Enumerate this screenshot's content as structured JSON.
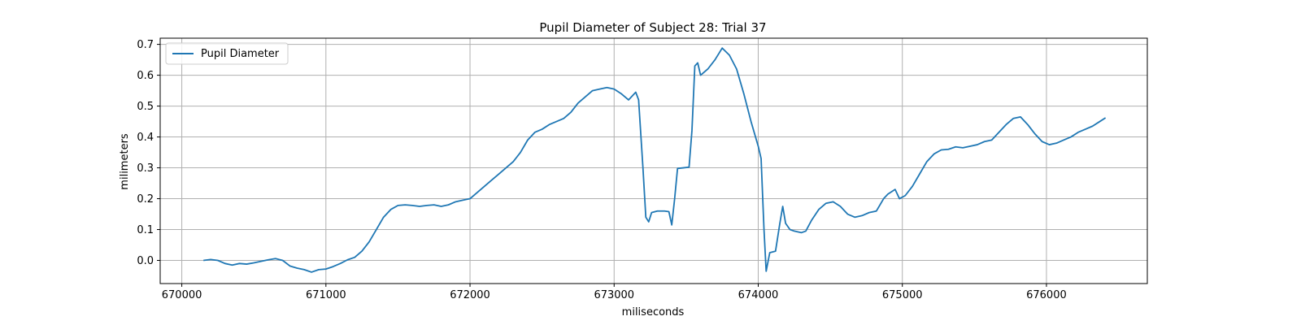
{
  "chart_data": {
    "type": "line",
    "title": "Pupil Diameter of Subject 28: Trial 37",
    "xlabel": "miliseconds",
    "ylabel": "milimeters",
    "xlim": [
      669850,
      676700
    ],
    "ylim": [
      -0.075,
      0.72
    ],
    "xticks": [
      670000,
      671000,
      672000,
      673000,
      674000,
      675000,
      676000
    ],
    "yticks": [
      0.0,
      0.1,
      0.2,
      0.3,
      0.4,
      0.5,
      0.6,
      0.7
    ],
    "grid": true,
    "legend_position": "top-left",
    "series": [
      {
        "name": "Pupil Diameter",
        "color": "#1f77b4",
        "points": [
          [
            670150,
            0.0
          ],
          [
            670200,
            0.003
          ],
          [
            670250,
            0.0
          ],
          [
            670300,
            -0.01
          ],
          [
            670350,
            -0.015
          ],
          [
            670400,
            -0.01
          ],
          [
            670450,
            -0.012
          ],
          [
            670500,
            -0.008
          ],
          [
            670550,
            -0.003
          ],
          [
            670600,
            0.002
          ],
          [
            670650,
            0.006
          ],
          [
            670700,
            0.0
          ],
          [
            670750,
            -0.018
          ],
          [
            670800,
            -0.025
          ],
          [
            670850,
            -0.03
          ],
          [
            670900,
            -0.038
          ],
          [
            670950,
            -0.03
          ],
          [
            671000,
            -0.028
          ],
          [
            671050,
            -0.02
          ],
          [
            671100,
            -0.01
          ],
          [
            671150,
            0.002
          ],
          [
            671200,
            0.01
          ],
          [
            671250,
            0.03
          ],
          [
            671300,
            0.06
          ],
          [
            671350,
            0.1
          ],
          [
            671400,
            0.14
          ],
          [
            671450,
            0.165
          ],
          [
            671500,
            0.178
          ],
          [
            671550,
            0.18
          ],
          [
            671600,
            0.178
          ],
          [
            671650,
            0.175
          ],
          [
            671700,
            0.178
          ],
          [
            671750,
            0.18
          ],
          [
            671800,
            0.175
          ],
          [
            671850,
            0.18
          ],
          [
            671900,
            0.19
          ],
          [
            671950,
            0.195
          ],
          [
            672000,
            0.2
          ],
          [
            672050,
            0.22
          ],
          [
            672100,
            0.24
          ],
          [
            672150,
            0.26
          ],
          [
            672200,
            0.28
          ],
          [
            672250,
            0.3
          ],
          [
            672300,
            0.32
          ],
          [
            672350,
            0.35
          ],
          [
            672400,
            0.39
          ],
          [
            672450,
            0.415
          ],
          [
            672500,
            0.425
          ],
          [
            672550,
            0.44
          ],
          [
            672600,
            0.45
          ],
          [
            672650,
            0.46
          ],
          [
            672700,
            0.48
          ],
          [
            672750,
            0.51
          ],
          [
            672800,
            0.53
          ],
          [
            672850,
            0.55
          ],
          [
            672900,
            0.555
          ],
          [
            672950,
            0.56
          ],
          [
            673000,
            0.555
          ],
          [
            673050,
            0.54
          ],
          [
            673100,
            0.52
          ],
          [
            673150,
            0.545
          ],
          [
            673170,
            0.52
          ],
          [
            673200,
            0.3
          ],
          [
            673220,
            0.14
          ],
          [
            673240,
            0.125
          ],
          [
            673260,
            0.155
          ],
          [
            673300,
            0.16
          ],
          [
            673350,
            0.16
          ],
          [
            673380,
            0.158
          ],
          [
            673400,
            0.115
          ],
          [
            673420,
            0.2
          ],
          [
            673440,
            0.298
          ],
          [
            673480,
            0.3
          ],
          [
            673520,
            0.302
          ],
          [
            673540,
            0.42
          ],
          [
            673560,
            0.63
          ],
          [
            673580,
            0.64
          ],
          [
            673600,
            0.6
          ],
          [
            673650,
            0.62
          ],
          [
            673700,
            0.65
          ],
          [
            673750,
            0.688
          ],
          [
            673800,
            0.665
          ],
          [
            673850,
            0.62
          ],
          [
            673900,
            0.54
          ],
          [
            673950,
            0.45
          ],
          [
            674000,
            0.37
          ],
          [
            674020,
            0.33
          ],
          [
            674040,
            0.1
          ],
          [
            674055,
            -0.035
          ],
          [
            674080,
            0.025
          ],
          [
            674120,
            0.03
          ],
          [
            674150,
            0.12
          ],
          [
            674170,
            0.175
          ],
          [
            674190,
            0.12
          ],
          [
            674220,
            0.1
          ],
          [
            674250,
            0.095
          ],
          [
            674300,
            0.09
          ],
          [
            674330,
            0.095
          ],
          [
            674370,
            0.13
          ],
          [
            674420,
            0.165
          ],
          [
            674470,
            0.185
          ],
          [
            674520,
            0.19
          ],
          [
            674570,
            0.175
          ],
          [
            674620,
            0.15
          ],
          [
            674670,
            0.14
          ],
          [
            674720,
            0.145
          ],
          [
            674770,
            0.155
          ],
          [
            674820,
            0.16
          ],
          [
            674870,
            0.2
          ],
          [
            674900,
            0.215
          ],
          [
            674950,
            0.23
          ],
          [
            674980,
            0.2
          ],
          [
            675020,
            0.21
          ],
          [
            675070,
            0.24
          ],
          [
            675120,
            0.28
          ],
          [
            675170,
            0.32
          ],
          [
            675220,
            0.345
          ],
          [
            675270,
            0.358
          ],
          [
            675320,
            0.36
          ],
          [
            675370,
            0.368
          ],
          [
            675420,
            0.365
          ],
          [
            675470,
            0.37
          ],
          [
            675520,
            0.375
          ],
          [
            675570,
            0.385
          ],
          [
            675620,
            0.39
          ],
          [
            675670,
            0.415
          ],
          [
            675720,
            0.44
          ],
          [
            675770,
            0.46
          ],
          [
            675820,
            0.465
          ],
          [
            675870,
            0.44
          ],
          [
            675920,
            0.41
          ],
          [
            675970,
            0.385
          ],
          [
            676020,
            0.375
          ],
          [
            676070,
            0.38
          ],
          [
            676120,
            0.39
          ],
          [
            676170,
            0.4
          ],
          [
            676220,
            0.415
          ],
          [
            676270,
            0.425
          ],
          [
            676320,
            0.435
          ],
          [
            676370,
            0.45
          ],
          [
            676410,
            0.462
          ]
        ]
      }
    ]
  }
}
